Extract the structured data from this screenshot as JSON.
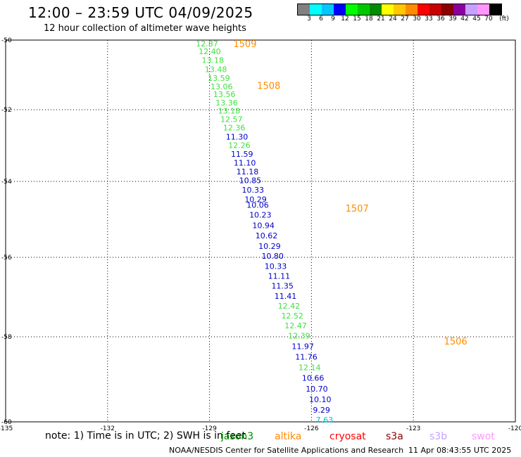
{
  "header": {
    "title": "12:00 – 23:59 UTC 04/09/2025",
    "subtitle": "12 hour collection of altimeter wave heights"
  },
  "colorbar": {
    "colors": [
      "#808080",
      "#00ffff",
      "#00c8ff",
      "#0000ff",
      "#00ff00",
      "#00c800",
      "#008c00",
      "#ffff00",
      "#ffc800",
      "#ff8c00",
      "#ff0000",
      "#c80000",
      "#8c0000",
      "#8c00a0",
      "#c8a0ff",
      "#ff96ff",
      "#000000"
    ],
    "labels": [
      "3",
      "6",
      "9",
      "12",
      "15",
      "18",
      "21",
      "24",
      "27",
      "30",
      "33",
      "36",
      "39",
      "42",
      "45",
      "70"
    ],
    "unit": "(ft)"
  },
  "map": {
    "lon_ticks": [
      "-135",
      "-132",
      "-129",
      "-126",
      "-123",
      "-120"
    ],
    "lat_ticks": [
      "-50",
      "-52",
      "-54",
      "-56",
      "-58",
      "-60"
    ],
    "grid": true
  },
  "passes": [
    {
      "id": "1509",
      "label_lat": -50.1,
      "label_lon": -128.3
    },
    {
      "id": "1508",
      "label_lat": -51.3,
      "label_lon": -127.6
    },
    {
      "id": "1507",
      "label_lat": -54.7,
      "label_lon": -125.0
    },
    {
      "id": "1506",
      "label_lat": -58.1,
      "label_lon": -122.1
    }
  ],
  "points": [
    {
      "v": "12.87",
      "lat": -50.1,
      "lon": -129.4,
      "c": "#40e040"
    },
    {
      "v": "12.40",
      "lat": -50.32,
      "lon": -129.32,
      "c": "#40e040"
    },
    {
      "v": "13.18",
      "lat": -50.58,
      "lon": -129.23,
      "c": "#40e040"
    },
    {
      "v": "13.48",
      "lat": -50.84,
      "lon": -129.14,
      "c": "#40e040"
    },
    {
      "v": "13.59",
      "lat": -51.09,
      "lon": -129.05,
      "c": "#40e040"
    },
    {
      "v": "13.06",
      "lat": -51.33,
      "lon": -128.97,
      "c": "#40e040"
    },
    {
      "v": "13.56",
      "lat": -51.56,
      "lon": -128.89,
      "c": "#40e040"
    },
    {
      "v": "13.36",
      "lat": -51.8,
      "lon": -128.82,
      "c": "#40e040"
    },
    {
      "v": "13.18",
      "lat": -52.03,
      "lon": -128.75,
      "c": "#40e040"
    },
    {
      "v": "12.57",
      "lat": -52.26,
      "lon": -128.68,
      "c": "#40e040"
    },
    {
      "v": "12.36",
      "lat": -52.5,
      "lon": -128.6,
      "c": "#40e040"
    },
    {
      "v": "11.30",
      "lat": -52.75,
      "lon": -128.52,
      "c": "#0000c8"
    },
    {
      "v": "12.26",
      "lat": -52.99,
      "lon": -128.45,
      "c": "#40e040"
    },
    {
      "v": "11.59",
      "lat": -53.24,
      "lon": -128.37,
      "c": "#0000c8"
    },
    {
      "v": "11.10",
      "lat": -53.48,
      "lon": -128.29,
      "c": "#0000c8"
    },
    {
      "v": "11.18",
      "lat": -53.73,
      "lon": -128.21,
      "c": "#0000c8"
    },
    {
      "v": "10.85",
      "lat": -53.97,
      "lon": -128.13,
      "c": "#0000c8"
    },
    {
      "v": "10.33",
      "lat": -54.22,
      "lon": -128.05,
      "c": "#0000c8"
    },
    {
      "v": "10.29",
      "lat": -54.47,
      "lon": -127.97,
      "c": "#0000c8"
    },
    {
      "v": "10.06",
      "lat": -54.62,
      "lon": -127.91,
      "c": "#0000c8"
    },
    {
      "v": "10.23",
      "lat": -54.88,
      "lon": -127.83,
      "c": "#0000c8"
    },
    {
      "v": "10.94",
      "lat": -55.16,
      "lon": -127.74,
      "c": "#0000c8"
    },
    {
      "v": "10.62",
      "lat": -55.43,
      "lon": -127.65,
      "c": "#0000c8"
    },
    {
      "v": "10.29",
      "lat": -55.7,
      "lon": -127.56,
      "c": "#0000c8"
    },
    {
      "v": "10.80",
      "lat": -55.96,
      "lon": -127.47,
      "c": "#0000c8"
    },
    {
      "v": "10.33",
      "lat": -56.22,
      "lon": -127.38,
      "c": "#0000c8"
    },
    {
      "v": "11.11",
      "lat": -56.47,
      "lon": -127.28,
      "c": "#0000c8"
    },
    {
      "v": "11.35",
      "lat": -56.72,
      "lon": -127.18,
      "c": "#0000c8"
    },
    {
      "v": "11.41",
      "lat": -56.97,
      "lon": -127.09,
      "c": "#0000c8"
    },
    {
      "v": "12.42",
      "lat": -57.22,
      "lon": -126.99,
      "c": "#40e040"
    },
    {
      "v": "12.52",
      "lat": -57.47,
      "lon": -126.89,
      "c": "#40e040"
    },
    {
      "v": "12.47",
      "lat": -57.72,
      "lon": -126.79,
      "c": "#40e040"
    },
    {
      "v": "12.39",
      "lat": -57.97,
      "lon": -126.69,
      "c": "#40e040"
    },
    {
      "v": "11.97",
      "lat": -58.22,
      "lon": -126.58,
      "c": "#0000c8"
    },
    {
      "v": "11.76",
      "lat": -58.47,
      "lon": -126.48,
      "c": "#0000c8"
    },
    {
      "v": "12.14",
      "lat": -58.72,
      "lon": -126.38,
      "c": "#40e040"
    },
    {
      "v": "10.66",
      "lat": -58.97,
      "lon": -126.28,
      "c": "#0000c8"
    },
    {
      "v": "10.70",
      "lat": -59.22,
      "lon": -126.17,
      "c": "#0000c8"
    },
    {
      "v": "10.10",
      "lat": -59.47,
      "lon": -126.07,
      "c": "#0000c8"
    },
    {
      "v": "9.29",
      "lat": -59.72,
      "lon": -125.96,
      "c": "#0000c8"
    },
    {
      "v": "7.63",
      "lat": -59.95,
      "lon": -125.87,
      "c": "#00c8c8"
    }
  ],
  "note": "note: 1) Time is in UTC; 2) SWH is in feet",
  "sources": [
    {
      "name": "jason3",
      "color": "#008c00"
    },
    {
      "name": "altika",
      "color": "#ff8c00"
    },
    {
      "name": "cryosat",
      "color": "#ff0000"
    },
    {
      "name": "s3a",
      "color": "#8c0000"
    },
    {
      "name": "s3b",
      "color": "#c8a0ff"
    },
    {
      "name": "swot",
      "color": "#ff96ff"
    }
  ],
  "footer": {
    "org": "NOAA/NESDIS Center for Satellite Applications and Research",
    "timestamp": "11 Apr 08:43:55 UTC 2025"
  }
}
